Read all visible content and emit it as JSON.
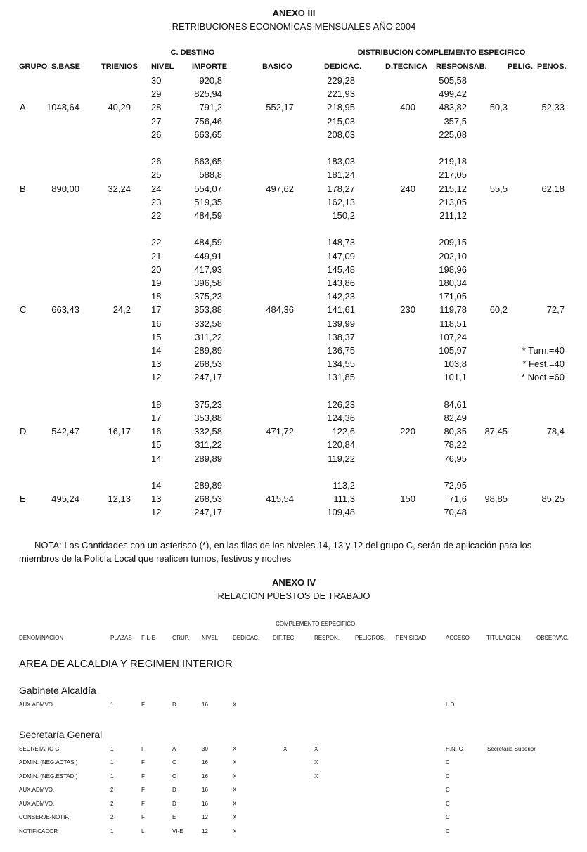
{
  "anexo3": {
    "title": "ANEXO III",
    "subtitle": "RETRIBUCIONES ECONOMICAS MENSUALES AÑO 2004",
    "group_header_destino": "C. DESTINO",
    "group_header_especifico": "DISTRIBUCION COMPLEMENTO ESPECIFICO",
    "headers": [
      "GRUPO",
      "S.BASE",
      "TRIENIOS",
      "NIVEL",
      "IMPORTE",
      "BASICO",
      "DEDICAC.",
      "D.TECNICA",
      "RESPONSAB.",
      "PELIG.",
      "PENOS."
    ],
    "groups": [
      {
        "grupo": "A",
        "sbase": "1048,64",
        "trienios": "40,29",
        "basico": "552,17",
        "dtecnica": "400",
        "pelig": "50,3",
        "penos": "52,33",
        "mid": 2,
        "rows": [
          [
            "30",
            "920,8",
            "229,28",
            "505,58"
          ],
          [
            "29",
            "825,94",
            "221,93",
            "499,42"
          ],
          [
            "28",
            "791,2",
            "218,95",
            "483,82"
          ],
          [
            "27",
            "756,46",
            "215,03",
            "357,5"
          ],
          [
            "26",
            "663,65",
            "208,03",
            "225,08"
          ]
        ]
      },
      {
        "grupo": "B",
        "sbase": "890,00",
        "trienios": "32,24",
        "basico": "497,62",
        "dtecnica": "240",
        "pelig": "55,5",
        "penos": "62,18",
        "mid": 2,
        "rows": [
          [
            "26",
            "663,65",
            "183,03",
            "219,18"
          ],
          [
            "25",
            "588,8",
            "181,24",
            "217,05"
          ],
          [
            "24",
            "554,07",
            "178,27",
            "215,12"
          ],
          [
            "23",
            "519,35",
            "162,13",
            "213,05"
          ],
          [
            "22",
            "484,59",
            "150,2",
            "211,12"
          ]
        ]
      },
      {
        "grupo": "C",
        "sbase": "663,43",
        "trienios": "24,2",
        "basico": "484,36",
        "dtecnica": "230",
        "pelig": "60,2",
        "penos": "72,7",
        "mid": 5,
        "rows": [
          [
            "22",
            "484,59",
            "148,73",
            "209,15"
          ],
          [
            "21",
            "449,91",
            "147,09",
            "202,10"
          ],
          [
            "20",
            "417,93",
            "145,48",
            "198,96"
          ],
          [
            "19",
            "396,58",
            "143,86",
            "180,34"
          ],
          [
            "18",
            "375,23",
            "142,23",
            "171,05"
          ],
          [
            "17",
            "353,88",
            "141,61",
            "119,78"
          ],
          [
            "16",
            "332,58",
            "139,99",
            "118,51"
          ],
          [
            "15",
            "311,22",
            "138,37",
            "107,24"
          ],
          [
            "14",
            "289,89",
            "136,75",
            "105,97",
            "* Turn.=40"
          ],
          [
            "13",
            "268,53",
            "134,55",
            "103,8",
            "* Fest.=40"
          ],
          [
            "12",
            "247,17",
            "131,85",
            "101,1",
            "* Noct.=60"
          ]
        ]
      },
      {
        "grupo": "D",
        "sbase": "542,47",
        "trienios": "16,17",
        "basico": "471,72",
        "dtecnica": "220",
        "pelig": "87,45",
        "penos": "78,4",
        "mid": 2,
        "rows": [
          [
            "18",
            "375,23",
            "126,23",
            "84,61"
          ],
          [
            "17",
            "353,88",
            "124,36",
            "82,49"
          ],
          [
            "16",
            "332,58",
            "122,6",
            "80,35"
          ],
          [
            "15",
            "311,22",
            "120,84",
            "78,22"
          ],
          [
            "14",
            "289,89",
            "119,22",
            "76,95"
          ]
        ]
      },
      {
        "grupo": "E",
        "sbase": "495,24",
        "trienios": "12,13",
        "basico": "415,54",
        "dtecnica": "150",
        "pelig": "98,85",
        "penos": "85,25",
        "mid": 1,
        "rows": [
          [
            "14",
            "289,89",
            "113,2",
            "72,95"
          ],
          [
            "13",
            "268,53",
            "111,3",
            "71,6"
          ],
          [
            "12",
            "247,17",
            "109,48",
            "70,48"
          ]
        ]
      }
    ],
    "nota": "NOTA: Las Cantidades con un asterisco (*), en las filas de los niveles 14, 13 y 12 del grupo C, serán de aplicación para los miembros de la Policía Local que realicen turnos, festivos y noches"
  },
  "anexo4": {
    "title": "ANEXO IV",
    "subtitle": "RELACION PUESTOS DE TRABAJO",
    "group_header": "COMPLEMENTO ESPECIFICO",
    "headers": [
      "DENOMINACION",
      "PLAZAS",
      "F-L-E-",
      "GRUP.",
      "NIVEL",
      "DEDICAC.",
      "DIF.TEC.",
      "RESPON.",
      "PELIGROS.",
      "PENISIDAD",
      "ACCESO",
      "TITULACION",
      "OBSERVAC."
    ],
    "area": "AREA DE ALCALDIA Y REGIMEN INTERIOR",
    "sections": [
      {
        "name": "Gabinete Alcaldía",
        "rows": [
          [
            "AUX.ADMVO.",
            "1",
            "F",
            "D",
            "16",
            "X",
            "",
            "",
            "",
            "",
            "L.D.",
            "",
            ""
          ]
        ]
      },
      {
        "name": "Secretaría General",
        "rows": [
          [
            "SECRETARO G.",
            "1",
            "F",
            "A",
            "30",
            "X",
            "X",
            "X",
            "",
            "",
            "H.N.-C",
            "Secretaria Superior",
            ""
          ],
          [
            "ADMIN. (NEG.ACTAS.)",
            "1",
            "F",
            "C",
            "16",
            "X",
            "",
            "X",
            "",
            "",
            "C",
            "",
            ""
          ],
          [
            "ADMIN. (NEG.ESTAD.)",
            "1",
            "F",
            "C",
            "16",
            "X",
            "",
            "X",
            "",
            "",
            "C",
            "",
            ""
          ],
          [
            "AUX.ADMVO.",
            "2",
            "F",
            "D",
            "16",
            "X",
            "",
            "",
            "",
            "",
            "C",
            "",
            ""
          ],
          [
            "AUX.ADMVO.",
            "2",
            "F",
            "D",
            "16",
            "X",
            "",
            "",
            "",
            "",
            "C",
            "",
            ""
          ],
          [
            "CONSERJE-NOTIF.",
            "2",
            "F",
            "E",
            "12",
            "X",
            "",
            "",
            "",
            "",
            "C",
            "",
            ""
          ],
          [
            "NOTIFICADOR",
            "1",
            "L",
            "VI-E",
            "12",
            "X",
            "",
            "",
            "",
            "",
            "C",
            "",
            ""
          ]
        ]
      }
    ]
  }
}
